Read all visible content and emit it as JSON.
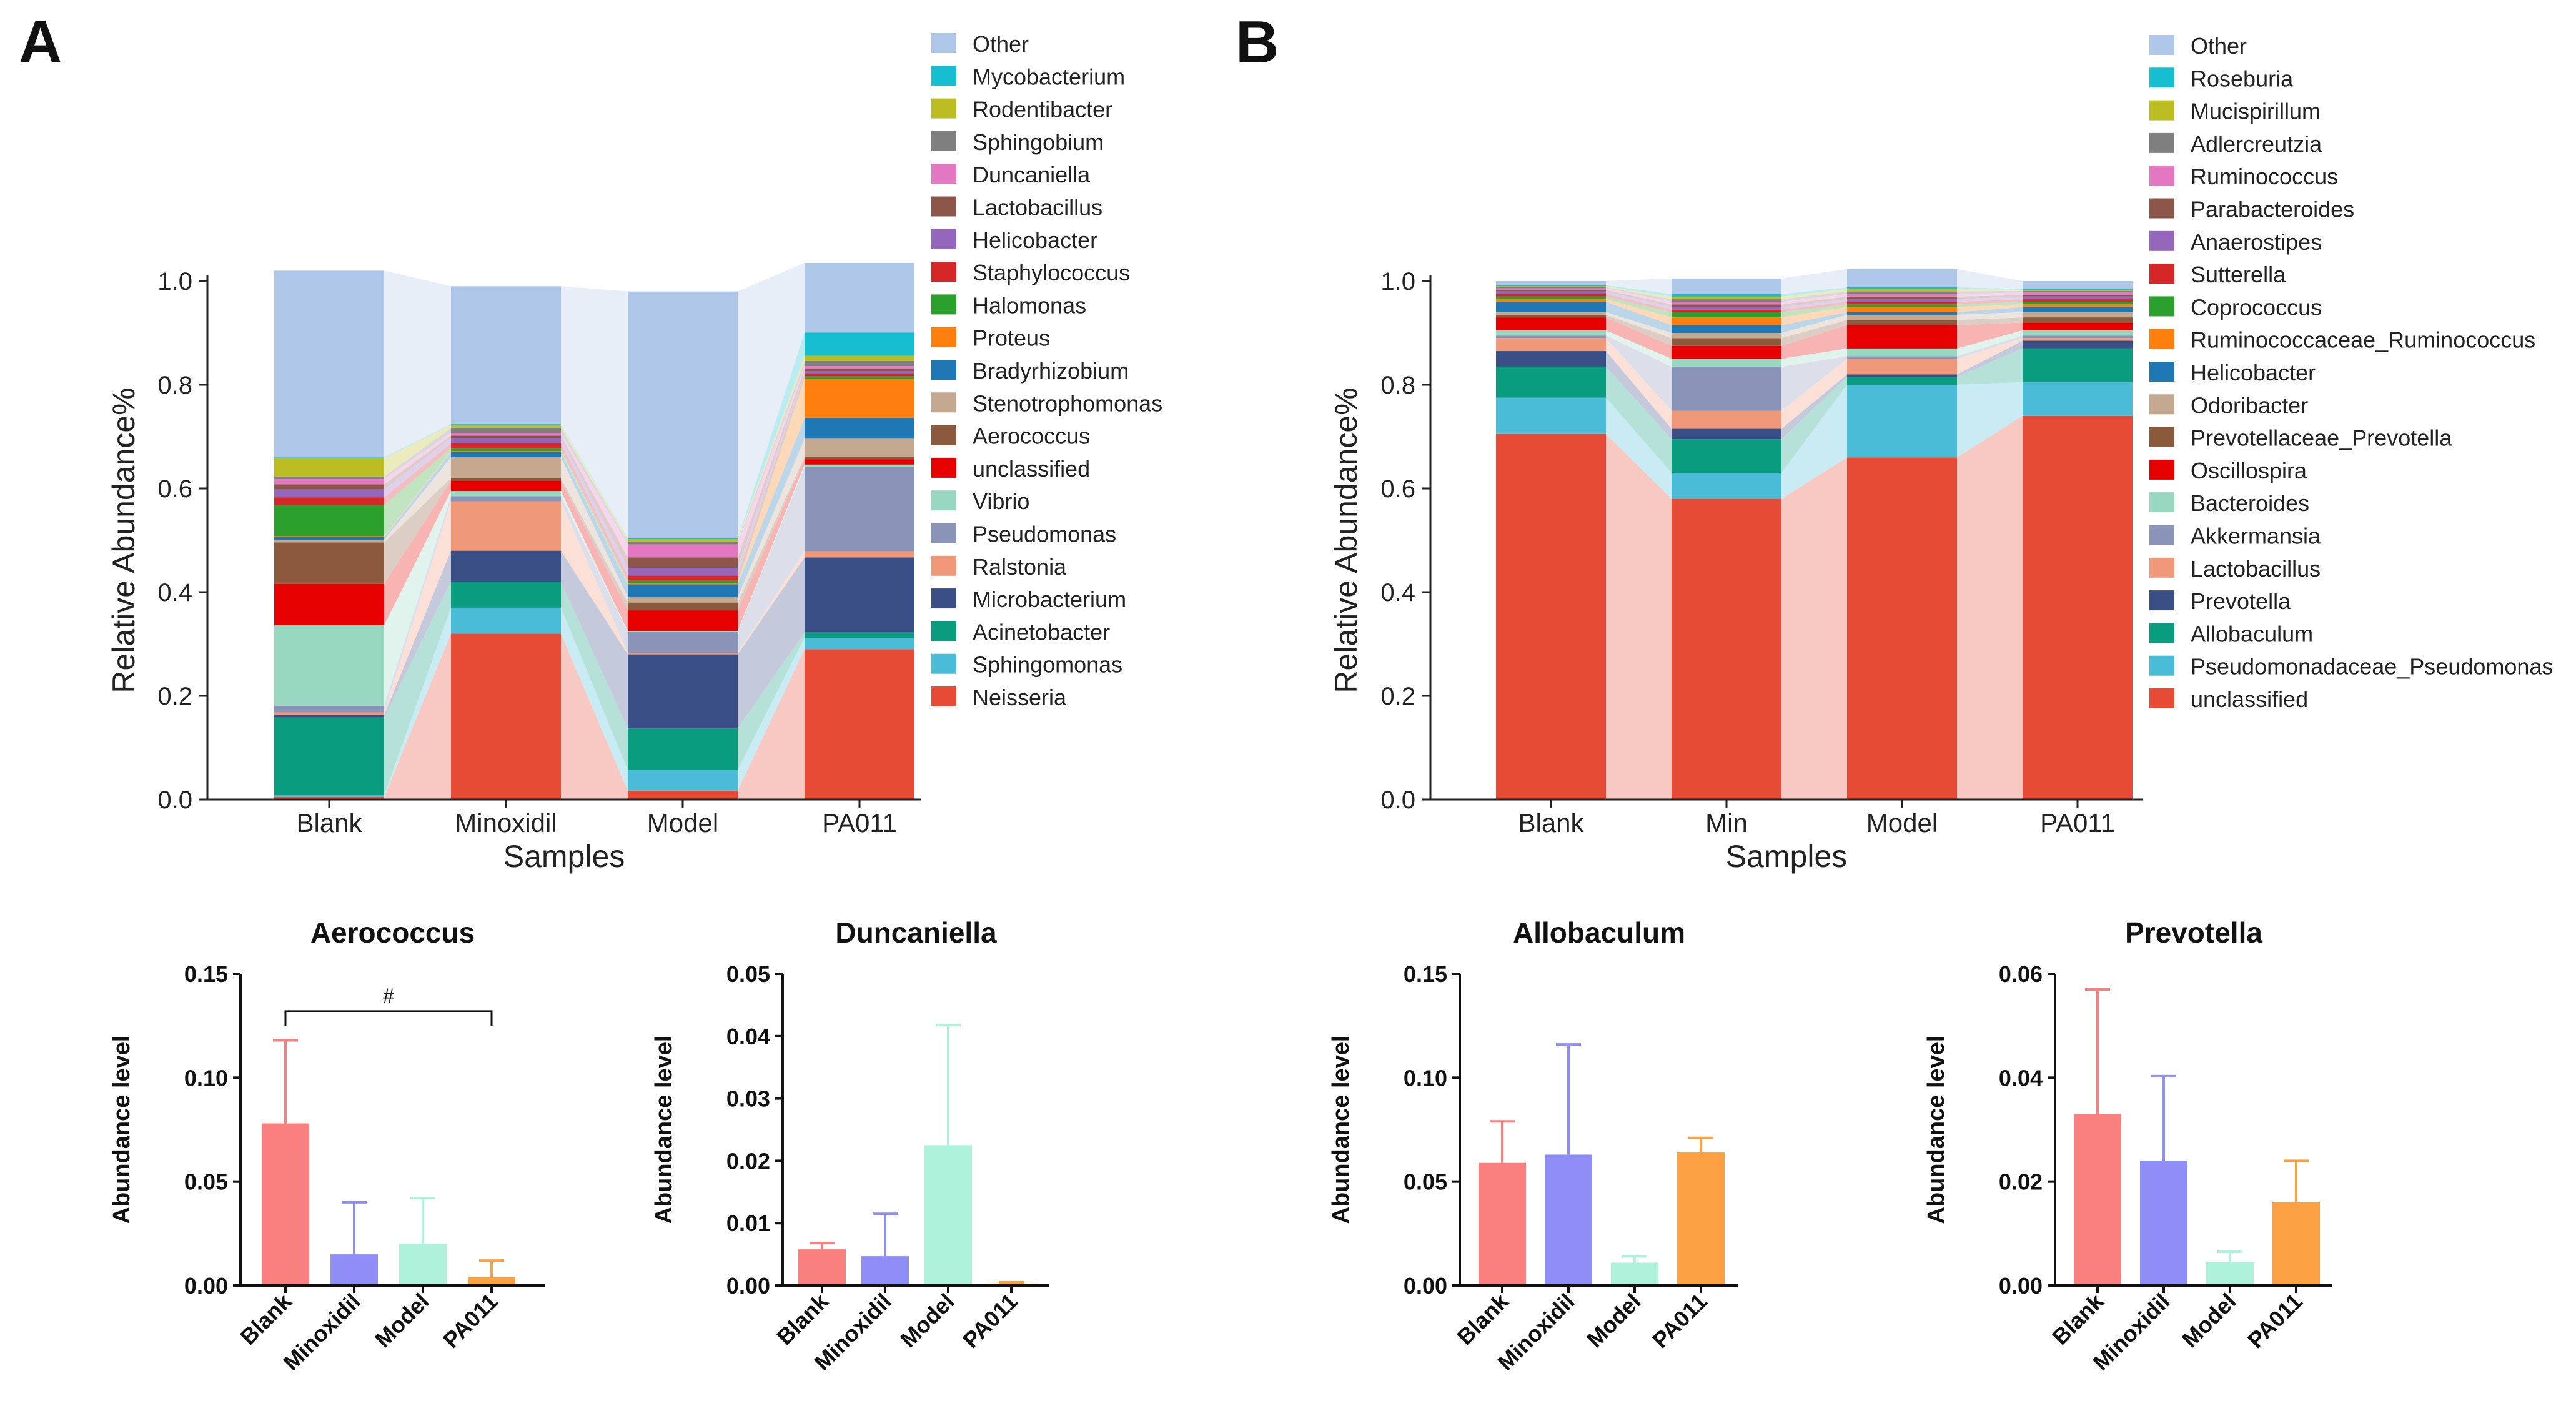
{
  "panel_labels": [
    "A",
    "B"
  ],
  "colors": {
    "Other": "#aec7e8",
    "Mycobacterium": "#17becf",
    "Rodentibacter": "#bcbd22",
    "Sphingobium": "#7f7f7f",
    "Duncaniella": "#e377c2",
    "Lactobacillus_A": "#8c564b",
    "Helicobacter_A": "#9467bd",
    "Staphylococcus": "#d62728",
    "Halomonas": "#2ca02c",
    "Proteus": "#ff7f0e",
    "Bradyrhizobium": "#1f77b4",
    "Stenotrophomonas": "#c4a88f",
    "Aerococcus": "#8b5a3c",
    "unclassified_A": "#e60000",
    "Vibrio": "#98d8c0",
    "Pseudomonas": "#8a93b8",
    "Ralstonia": "#f0987a",
    "Microbacterium": "#3b4f87",
    "Acinetobacter": "#0a9c7f",
    "Sphingomonas": "#4bbcd8",
    "Neisseria": "#e64b35",
    "bar_red": "#fa7f7f",
    "bar_purple": "#8e8ef6",
    "bar_mint": "#aef2dc",
    "bar_orange": "#fba043"
  },
  "chart_data": [
    {
      "id": "A",
      "type": "bar",
      "stacked": true,
      "title": "",
      "xlabel": "Samples",
      "ylabel": "Relative Abundance%",
      "ylim": [
        0,
        1.0
      ],
      "yticks": [
        "0.0",
        "0.2",
        "0.4",
        "0.6",
        "0.8",
        "1.0"
      ],
      "categories": [
        "Blank",
        "Minoxidil",
        "Model",
        "PA011"
      ],
      "series": [
        {
          "name": "Neisseria",
          "color": "#e64b35",
          "values": [
            0.005,
            0.32,
            0.017,
            0.29
          ]
        },
        {
          "name": "Sphingomonas",
          "color": "#4bbcd8",
          "values": [
            0.003,
            0.05,
            0.04,
            0.022
          ]
        },
        {
          "name": "Acinetobacter",
          "color": "#0a9c7f",
          "values": [
            0.15,
            0.05,
            0.08,
            0.01
          ]
        },
        {
          "name": "Microbacterium",
          "color": "#3b4f87",
          "values": [
            0.005,
            0.06,
            0.143,
            0.145
          ]
        },
        {
          "name": "Ralstonia",
          "color": "#f0987a",
          "values": [
            0.005,
            0.095,
            0.003,
            0.012
          ]
        },
        {
          "name": "Pseudomonas",
          "color": "#8a93b8",
          "values": [
            0.013,
            0.01,
            0.04,
            0.162
          ]
        },
        {
          "name": "Vibrio",
          "color": "#98d8c0",
          "values": [
            0.155,
            0.01,
            0.002,
            0.005
          ]
        },
        {
          "name": "unclassified",
          "color": "#e60000",
          "values": [
            0.08,
            0.02,
            0.04,
            0.01
          ]
        },
        {
          "name": "Aerococcus",
          "color": "#8b5a3c",
          "values": [
            0.08,
            0.005,
            0.015,
            0.005
          ]
        },
        {
          "name": "Stenotrophomonas",
          "color": "#c4a88f",
          "values": [
            0.005,
            0.04,
            0.01,
            0.035
          ]
        },
        {
          "name": "Bradyrhizobium",
          "color": "#1f77b4",
          "values": [
            0.005,
            0.01,
            0.025,
            0.04
          ]
        },
        {
          "name": "Proteus",
          "color": "#ff7f0e",
          "values": [
            0.002,
            0.002,
            0.002,
            0.075
          ]
        },
        {
          "name": "Halomonas",
          "color": "#2ca02c",
          "values": [
            0.06,
            0.005,
            0.005,
            0.005
          ]
        },
        {
          "name": "Staphylococcus",
          "color": "#d62728",
          "values": [
            0.015,
            0.01,
            0.01,
            0.005
          ]
        },
        {
          "name": "Helicobacter",
          "color": "#9467bd",
          "values": [
            0.015,
            0.01,
            0.015,
            0.005
          ]
        },
        {
          "name": "Lactobacillus",
          "color": "#8c564b",
          "values": [
            0.01,
            0.005,
            0.02,
            0.005
          ]
        },
        {
          "name": "Duncaniella",
          "color": "#e377c2",
          "values": [
            0.01,
            0.005,
            0.025,
            0.005
          ]
        },
        {
          "name": "Sphingobium",
          "color": "#7f7f7f",
          "values": [
            0.005,
            0.01,
            0.005,
            0.01
          ]
        },
        {
          "name": "Rodentibacter",
          "color": "#bcbd22",
          "values": [
            0.035,
            0.005,
            0.005,
            0.01
          ]
        },
        {
          "name": "Mycobacterium",
          "color": "#17becf",
          "values": [
            0.002,
            0.002,
            0.002,
            0.045
          ]
        },
        {
          "name": "Other",
          "color": "#aec7e8",
          "values": [
            0.36,
            0.266,
            0.476,
            0.134
          ]
        }
      ]
    },
    {
      "id": "B",
      "type": "bar",
      "stacked": true,
      "title": "",
      "xlabel": "Samples",
      "ylabel": "Relative Abundance%",
      "ylim": [
        0,
        1.0
      ],
      "yticks": [
        "0.0",
        "0.2",
        "0.4",
        "0.6",
        "0.8",
        "1.0"
      ],
      "categories": [
        "Blank",
        "Min",
        "Model",
        "PA011"
      ],
      "series": [
        {
          "name": "unclassified",
          "color": "#e64b35",
          "values": [
            0.705,
            0.58,
            0.66,
            0.74
          ]
        },
        {
          "name": "Pseudomonadaceae_Pseudomonas",
          "color": "#4bbcd8",
          "values": [
            0.07,
            0.05,
            0.14,
            0.065
          ]
        },
        {
          "name": "Allobaculum",
          "color": "#0a9c7f",
          "values": [
            0.06,
            0.065,
            0.015,
            0.065
          ]
        },
        {
          "name": "Prevotella",
          "color": "#3b4f87",
          "values": [
            0.03,
            0.02,
            0.005,
            0.015
          ]
        },
        {
          "name": "Lactobacillus",
          "color": "#f0987a",
          "values": [
            0.025,
            0.035,
            0.03,
            0.005
          ]
        },
        {
          "name": "Akkermansia",
          "color": "#8a93b8",
          "values": [
            0.005,
            0.085,
            0.005,
            0.005
          ]
        },
        {
          "name": "Bacteroides",
          "color": "#98d8c0",
          "values": [
            0.01,
            0.015,
            0.015,
            0.01
          ]
        },
        {
          "name": "Oscillospira",
          "color": "#e60000",
          "values": [
            0.025,
            0.025,
            0.045,
            0.015
          ]
        },
        {
          "name": "Prevotellaceae_Prevotella",
          "color": "#8b5a3c",
          "values": [
            0.005,
            0.015,
            0.01,
            0.01
          ]
        },
        {
          "name": "Odoribacter",
          "color": "#c4a88f",
          "values": [
            0.005,
            0.01,
            0.01,
            0.01
          ]
        },
        {
          "name": "Helicobacter",
          "color": "#1f77b4",
          "values": [
            0.02,
            0.015,
            0.005,
            0.01
          ]
        },
        {
          "name": "Ruminococcaceae_Ruminococcus",
          "color": "#ff7f0e",
          "values": [
            0.005,
            0.015,
            0.01,
            0.005
          ]
        },
        {
          "name": "Coprococcus",
          "color": "#2ca02c",
          "values": [
            0.005,
            0.01,
            0.005,
            0.005
          ]
        },
        {
          "name": "Sutterella",
          "color": "#d62728",
          "values": [
            0.005,
            0.005,
            0.005,
            0.005
          ]
        },
        {
          "name": "Anaerostipes",
          "color": "#9467bd",
          "values": [
            0.005,
            0.005,
            0.005,
            0.005
          ]
        },
        {
          "name": "Parabacteroides",
          "color": "#8c564b",
          "values": [
            0.003,
            0.005,
            0.005,
            0.003
          ]
        },
        {
          "name": "Ruminococcus",
          "color": "#e377c2",
          "values": [
            0.003,
            0.005,
            0.005,
            0.005
          ]
        },
        {
          "name": "Adlercreutzia",
          "color": "#7f7f7f",
          "values": [
            0.002,
            0.005,
            0.005,
            0.003
          ]
        },
        {
          "name": "Mucispirillum",
          "color": "#bcbd22",
          "values": [
            0.002,
            0.005,
            0.005,
            0.002
          ]
        },
        {
          "name": "Roseburia",
          "color": "#17becf",
          "values": [
            0.002,
            0.005,
            0.003,
            0.002
          ]
        },
        {
          "name": "Other",
          "color": "#aec7e8",
          "values": [
            0.008,
            0.03,
            0.035,
            0.015
          ]
        }
      ]
    },
    {
      "id": "aerococcus",
      "type": "bar",
      "title": "Aerococcus",
      "xlabel": "",
      "ylabel": "Abundance level",
      "ylim": [
        0,
        0.15
      ],
      "yticks": [
        "0.00",
        "0.05",
        "0.10",
        "0.15"
      ],
      "categories": [
        "Blank",
        "Minoxidil",
        "Model",
        "PA011"
      ],
      "values": [
        0.078,
        0.015,
        0.02,
        0.004
      ],
      "errors": [
        0.04,
        0.025,
        0.022,
        0.008
      ],
      "annotation": {
        "text": "#",
        "from": 0,
        "to": 3,
        "y": 0.132
      }
    },
    {
      "id": "duncaniella",
      "type": "bar",
      "title": "Duncaniella",
      "xlabel": "",
      "ylabel": "Abundance level",
      "ylim": [
        0,
        0.05
      ],
      "yticks": [
        "0.00",
        "0.01",
        "0.02",
        "0.03",
        "0.04",
        "0.05"
      ],
      "categories": [
        "Blank",
        "Minoxidil",
        "Model",
        "PA011"
      ],
      "values": [
        0.0058,
        0.0047,
        0.0225,
        0.0003
      ],
      "errors": [
        0.001,
        0.0068,
        0.0193,
        0.0002
      ]
    },
    {
      "id": "allobaculum",
      "type": "bar",
      "title": "Allobaculum",
      "xlabel": "",
      "ylabel": "Abundance level",
      "ylim": [
        0,
        0.15
      ],
      "yticks": [
        "0.00",
        "0.05",
        "0.10",
        "0.15"
      ],
      "categories": [
        "Blank",
        "Minoxidil",
        "Model",
        "PA011"
      ],
      "values": [
        0.059,
        0.063,
        0.011,
        0.064
      ],
      "errors": [
        0.02,
        0.053,
        0.003,
        0.007
      ]
    },
    {
      "id": "prevotella",
      "type": "bar",
      "title": "Prevotella",
      "xlabel": "",
      "ylabel": "Abundance level",
      "ylim": [
        0,
        0.06
      ],
      "yticks": [
        "0.00",
        "0.02",
        "0.04",
        "0.06"
      ],
      "categories": [
        "Blank",
        "Minoxidil",
        "Model",
        "PA011"
      ],
      "values": [
        0.033,
        0.024,
        0.0045,
        0.016
      ],
      "errors": [
        0.024,
        0.0163,
        0.002,
        0.008
      ]
    }
  ]
}
